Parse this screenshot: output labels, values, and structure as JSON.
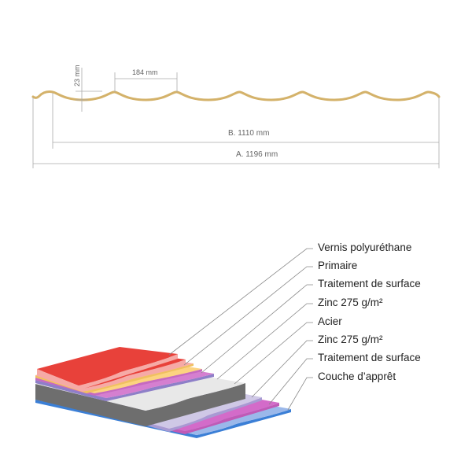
{
  "profile": {
    "height_label": "23 mm",
    "pitch_label": "184 mm",
    "width_b_label": "B. 1110 mm",
    "width_a_label": "A. 1196 mm",
    "profile_color": "#d4b26a"
  },
  "layers": [
    {
      "label": "Vernis polyuréthane",
      "color": "#e8413a"
    },
    {
      "label": "Primaire",
      "color": "#f6aaa6"
    },
    {
      "label": "Traitement de surface",
      "color": "#fcd380"
    },
    {
      "label": "Zinc 275 g/m²",
      "color": "#d57fd0"
    },
    {
      "label": "Acier",
      "color": "#e8e8e8"
    },
    {
      "label": "Zinc 275 g/m²",
      "color": "#cfc8e6"
    },
    {
      "label": "Traitement de surface",
      "color": "#d36bc9"
    },
    {
      "label": "Couche d’apprêt",
      "color": "#9bb8ea"
    }
  ]
}
